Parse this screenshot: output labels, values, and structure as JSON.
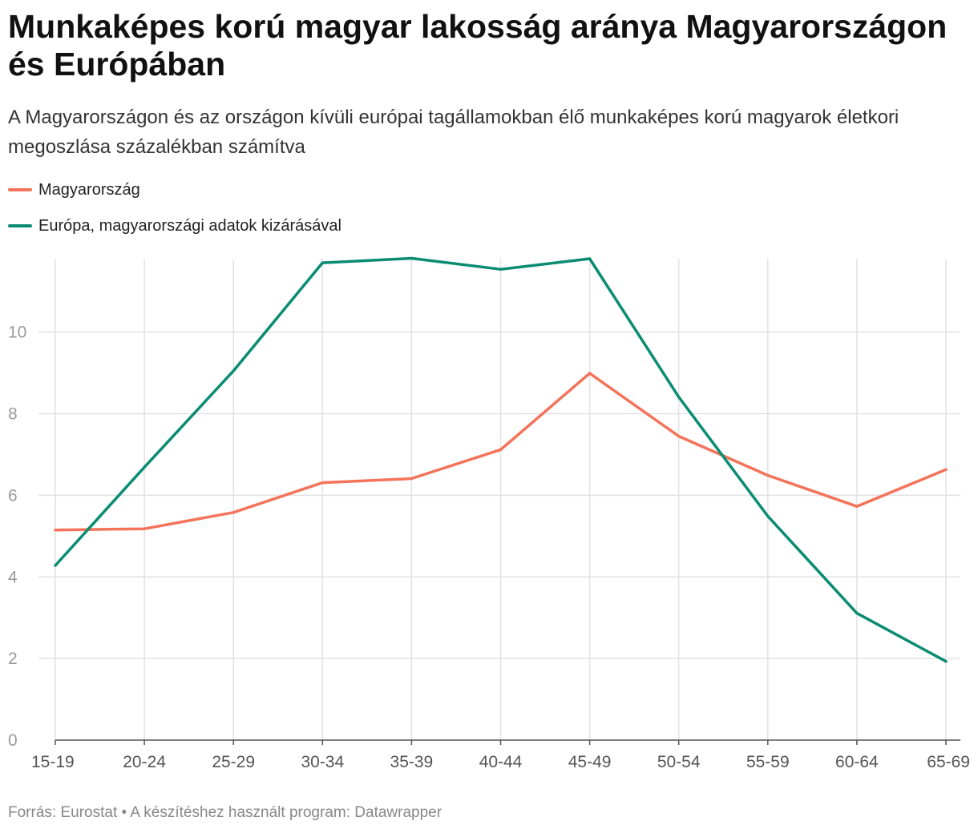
{
  "title": "Munkaképes korú magyar lakosság aránya Magyarországon és Európában",
  "subtitle": "A Magyarországon és az országon kívüli európai tagállamokban élő munkaképes korú magyarok életkori megoszlása százalékban számítva",
  "footer": {
    "source_label": "Forrás:",
    "source": "Eurostat",
    "separator": "•",
    "tool_label": "A készítéshez használt program:",
    "tool": "Datawrapper"
  },
  "colors": {
    "hungary": "#f4735a",
    "europe": "#0a8c72",
    "grid": "#e2e2e2",
    "tick_label": "#9a9a9a"
  },
  "chart_data": {
    "type": "line",
    "title": "Munkaképes korú magyar lakosság aránya Magyarországon és Európában",
    "xlabel": "",
    "ylabel": "",
    "categories": [
      "15-19",
      "20-24",
      "25-29",
      "30-34",
      "35-39",
      "40-44",
      "45-49",
      "50-54",
      "55-59",
      "60-64",
      "65-69"
    ],
    "ylim": [
      0,
      11.8
    ],
    "yticks": [
      0,
      2,
      4,
      6,
      8,
      10
    ],
    "grid": true,
    "legend_position": "top-left",
    "series": [
      {
        "name": "Magyarország",
        "color": "#f4735a",
        "values": [
          5.15,
          5.18,
          5.58,
          6.31,
          6.41,
          7.12,
          8.99,
          7.45,
          6.49,
          5.73,
          6.63
        ]
      },
      {
        "name": "Európa, magyarországi adatok kizárásával",
        "color": "#0a8c72",
        "values": [
          4.28,
          6.69,
          9.05,
          11.7,
          11.81,
          11.54,
          11.8,
          8.41,
          5.49,
          3.11,
          1.93
        ]
      }
    ]
  }
}
